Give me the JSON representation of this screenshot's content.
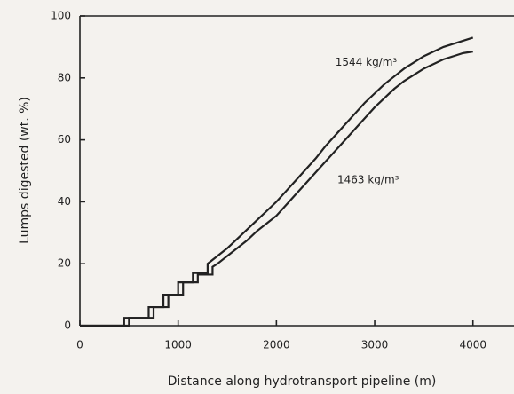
{
  "chart_data": {
    "type": "line",
    "xlabel": "Distance along hydrotransport pipeline (m)",
    "ylabel": "Lumps digested (wt. %)",
    "xlim": [
      0,
      4400
    ],
    "ylim": [
      0,
      100
    ],
    "xticks": [
      0,
      1000,
      2000,
      3000,
      4000
    ],
    "yticks": [
      0,
      20,
      40,
      60,
      80,
      100
    ],
    "color": "#222222",
    "annotations": [
      {
        "text": "1544 kg/m³",
        "x": 2600,
        "y": 85
      },
      {
        "text": "1463 kg/m³",
        "x": 2620,
        "y": 47
      }
    ],
    "series": [
      {
        "name": "1544 kg/m³",
        "color": "#222222",
        "x": [
          0,
          450,
          450,
          700,
          700,
          850,
          850,
          1000,
          1000,
          1150,
          1150,
          1300,
          1300,
          1400,
          1500,
          1600,
          1700,
          1800,
          1900,
          2000,
          2100,
          2200,
          2300,
          2400,
          2500,
          2600,
          2700,
          2800,
          2900,
          3000,
          3100,
          3200,
          3300,
          3400,
          3500,
          3600,
          3700,
          3800,
          3900,
          4000
        ],
        "values": [
          0,
          0,
          2.5,
          2.5,
          6,
          6,
          10,
          10,
          14,
          14,
          17,
          17,
          20,
          22.5,
          25,
          28,
          31,
          34,
          37,
          40,
          43.5,
          47,
          50.5,
          54,
          58,
          61.5,
          65,
          68.5,
          72,
          75,
          78,
          80.5,
          83,
          85,
          87,
          88.5,
          90,
          91,
          92,
          93
        ]
      },
      {
        "name": "1463 kg/m³",
        "color": "#222222",
        "x": [
          0,
          500,
          500,
          750,
          750,
          900,
          900,
          1050,
          1050,
          1200,
          1200,
          1350,
          1350,
          1400,
          1500,
          1600,
          1700,
          1800,
          1900,
          2000,
          2100,
          2200,
          2300,
          2400,
          2500,
          2600,
          2700,
          2800,
          2900,
          3000,
          3100,
          3200,
          3300,
          3400,
          3500,
          3600,
          3700,
          3800,
          3900,
          4000
        ],
        "values": [
          0,
          0,
          2.5,
          2.5,
          6,
          6,
          10,
          10,
          14,
          14,
          16.5,
          16.5,
          19,
          20,
          22.5,
          25,
          27.5,
          30.5,
          33,
          35.5,
          39,
          42.5,
          46,
          49.5,
          53,
          56.5,
          60,
          63.5,
          67,
          70.5,
          73.5,
          76.5,
          79,
          81,
          83,
          84.5,
          86,
          87,
          88,
          88.5
        ]
      }
    ]
  }
}
